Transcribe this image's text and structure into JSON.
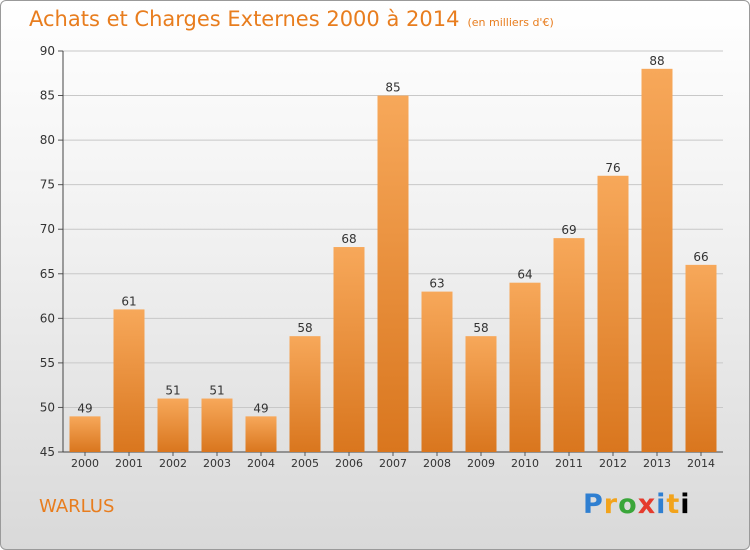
{
  "chart_data": {
    "type": "bar",
    "title": "Achats et Charges Externes 2000 à 2014",
    "subtitle": "(en milliers d'€)",
    "categories": [
      "2000",
      "2001",
      "2002",
      "2003",
      "2004",
      "2005",
      "2006",
      "2007",
      "2008",
      "2009",
      "2010",
      "2011",
      "2012",
      "2013",
      "2014"
    ],
    "values": [
      49,
      61,
      51,
      51,
      49,
      58,
      68,
      85,
      63,
      58,
      64,
      69,
      76,
      88,
      66
    ],
    "ylim": [
      45,
      90
    ],
    "yticks": [
      45,
      50,
      55,
      60,
      65,
      70,
      75,
      80,
      85,
      90
    ],
    "grid": true,
    "bar_color_top": "#f7a85a",
    "bar_color_bottom": "#d9761e"
  },
  "footer": {
    "commune": "WARLUS",
    "logo_letters": [
      "P",
      "r",
      "o",
      "x",
      "i",
      "t",
      "i"
    ]
  },
  "colors": {
    "accent": "#e87d1e"
  }
}
